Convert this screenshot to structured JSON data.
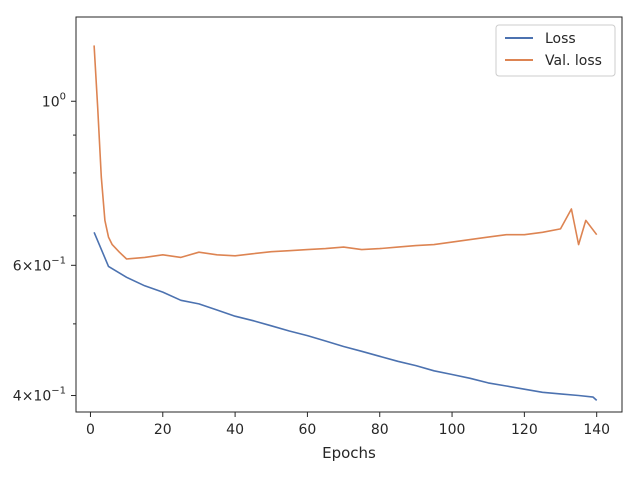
{
  "chart_data": {
    "type": "line",
    "xlabel": "Epochs",
    "ylabel": "",
    "xlim": [
      -4,
      147
    ],
    "ylim": [
      0.38,
      1.3
    ],
    "yscale": "log",
    "xticks": [
      0,
      20,
      40,
      60,
      80,
      100,
      120,
      140
    ],
    "yticks": [
      {
        "value": 1.0,
        "label": "10^0"
      },
      {
        "value": 0.6,
        "label": "6×10^-1"
      },
      {
        "value": 0.4,
        "label": "4×10^-1"
      }
    ],
    "y_minor_ticks": [
      0.5,
      0.7,
      0.8,
      0.9
    ],
    "grid": false,
    "legend_position": "upper right",
    "series": [
      {
        "name": "Loss",
        "color": "#4c72b0",
        "x": [
          1,
          5,
          10,
          15,
          20,
          25,
          30,
          35,
          40,
          45,
          50,
          55,
          60,
          65,
          70,
          75,
          80,
          85,
          90,
          95,
          100,
          105,
          110,
          115,
          120,
          125,
          130,
          135,
          139,
          140
        ],
        "y": [
          0.665,
          0.598,
          0.578,
          0.563,
          0.552,
          0.538,
          0.532,
          0.522,
          0.512,
          0.505,
          0.497,
          0.489,
          0.482,
          0.474,
          0.466,
          0.459,
          0.452,
          0.445,
          0.439,
          0.432,
          0.427,
          0.422,
          0.416,
          0.412,
          0.408,
          0.404,
          0.402,
          0.4,
          0.398,
          0.394
        ]
      },
      {
        "name": "Val. loss",
        "color": "#dd8452",
        "x": [
          1,
          2,
          3,
          4,
          5,
          6,
          8,
          10,
          15,
          20,
          25,
          30,
          35,
          40,
          45,
          50,
          55,
          60,
          65,
          70,
          75,
          80,
          85,
          90,
          95,
          100,
          105,
          110,
          115,
          120,
          125,
          130,
          133,
          135,
          137,
          140
        ],
        "y": [
          1.19,
          0.98,
          0.79,
          0.69,
          0.655,
          0.64,
          0.625,
          0.612,
          0.615,
          0.62,
          0.615,
          0.625,
          0.62,
          0.618,
          0.622,
          0.626,
          0.628,
          0.63,
          0.632,
          0.635,
          0.63,
          0.632,
          0.635,
          0.638,
          0.64,
          0.645,
          0.65,
          0.655,
          0.66,
          0.66,
          0.665,
          0.672,
          0.715,
          0.64,
          0.69,
          0.66
        ]
      }
    ]
  }
}
